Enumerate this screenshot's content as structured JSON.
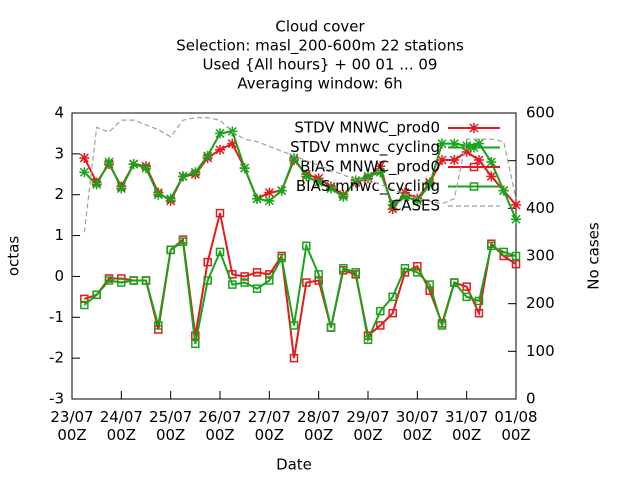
{
  "chart_data": {
    "type": "line",
    "title": [
      "Cloud cover",
      "Selection: masl_200-600m     22 stations",
      "Used {All hours} + 00 01 ... 09",
      "Averaging window:  6h"
    ],
    "x_label": "Date",
    "y_label": "octas",
    "y2_label": "No cases",
    "xlim": [
      0,
      216
    ],
    "xticks": [
      {
        "value": 0,
        "label": "23/07\n00Z"
      },
      {
        "value": 24,
        "label": "24/07\n00Z"
      },
      {
        "value": 48,
        "label": "25/07\n00Z"
      },
      {
        "value": 72,
        "label": "26/07\n00Z"
      },
      {
        "value": 96,
        "label": "27/07\n00Z"
      },
      {
        "value": 120,
        "label": "28/07\n00Z"
      },
      {
        "value": 144,
        "label": "29/07\n00Z"
      },
      {
        "value": 168,
        "label": "30/07\n00Z"
      },
      {
        "value": 192,
        "label": "31/07\n00Z"
      },
      {
        "value": 216,
        "label": "01/08\n00Z"
      }
    ],
    "ylim": [
      -3,
      4
    ],
    "yticks": [
      -3,
      -2,
      -1,
      0,
      1,
      2,
      3,
      4
    ],
    "y2lim": [
      0,
      600
    ],
    "y2ticks": [
      0,
      100,
      200,
      300,
      400,
      500,
      600
    ],
    "legend": "upper right",
    "x": [
      6,
      12,
      18,
      24,
      30,
      36,
      42,
      48,
      54,
      60,
      66,
      72,
      78,
      84,
      90,
      96,
      102,
      108,
      114,
      120,
      126,
      132,
      138,
      144,
      150,
      156,
      162,
      168,
      174,
      180,
      186,
      192,
      198,
      204,
      210,
      216
    ],
    "series": [
      {
        "name": "STDV MNWC_prod0",
        "color": "#e41a1c",
        "marker": "star",
        "values": [
          2.9,
          2.3,
          2.75,
          2.2,
          2.75,
          2.7,
          2.05,
          1.85,
          2.45,
          2.5,
          2.9,
          3.1,
          3.25,
          2.65,
          1.9,
          2.05,
          2.1,
          2.85,
          2.5,
          2.4,
          2.2,
          2.0,
          2.3,
          2.4,
          2.7,
          1.65,
          2.05,
          1.9,
          2.3,
          2.85,
          2.85,
          3.05,
          2.85,
          2.45,
          2.1,
          1.75
        ]
      },
      {
        "name": "STDV mnwc_cycling",
        "color": "#1aa31a",
        "marker": "star",
        "values": [
          2.55,
          2.25,
          2.8,
          2.15,
          2.75,
          2.65,
          2.0,
          1.9,
          2.45,
          2.55,
          2.95,
          3.5,
          3.55,
          2.65,
          1.9,
          1.85,
          2.1,
          2.9,
          2.45,
          2.3,
          2.15,
          1.95,
          2.35,
          2.45,
          2.55,
          1.75,
          1.95,
          1.85,
          2.25,
          3.25,
          3.25,
          3.2,
          3.25,
          2.8,
          2.1,
          1.4
        ]
      },
      {
        "name": "BIAS MNWC_prod0",
        "color": "#e41a1c",
        "marker": "square",
        "values": [
          -0.55,
          -0.45,
          -0.05,
          -0.05,
          -0.1,
          -0.1,
          -1.3,
          0.65,
          0.9,
          -1.45,
          0.35,
          1.55,
          0.05,
          0.0,
          0.1,
          0.05,
          0.5,
          -2.0,
          -0.15,
          -0.1,
          -1.25,
          0.15,
          0.05,
          -1.45,
          -1.2,
          -0.9,
          0.1,
          0.25,
          -0.35,
          -1.15,
          -0.15,
          -0.25,
          -0.9,
          0.8,
          0.5,
          0.3
        ]
      },
      {
        "name": "BIAS mnwc_cycling",
        "color": "#1aa31a",
        "marker": "square",
        "values": [
          -0.7,
          -0.45,
          -0.1,
          -0.15,
          -0.1,
          -0.1,
          -1.2,
          0.65,
          0.85,
          -1.65,
          -0.1,
          0.6,
          -0.2,
          -0.15,
          -0.3,
          -0.1,
          0.45,
          -1.2,
          0.75,
          0.05,
          -1.25,
          0.2,
          0.1,
          -1.55,
          -0.85,
          -0.5,
          0.2,
          0.1,
          -0.2,
          -1.2,
          -0.15,
          -0.5,
          -0.6,
          0.75,
          0.6,
          0.5
        ]
      },
      {
        "name": "CASES",
        "color": "#a0a0a0",
        "marker": "none",
        "dashed": true,
        "axis": "y2",
        "values": [
          350,
          570,
          560,
          585,
          585,
          575,
          565,
          550,
          585,
          590,
          590,
          585,
          560,
          545,
          540,
          530,
          520,
          510,
          500,
          490,
          480,
          470,
          460,
          460,
          450,
          440,
          430,
          420,
          415,
          410,
          420,
          545,
          545,
          545,
          540,
          420
        ]
      }
    ]
  }
}
